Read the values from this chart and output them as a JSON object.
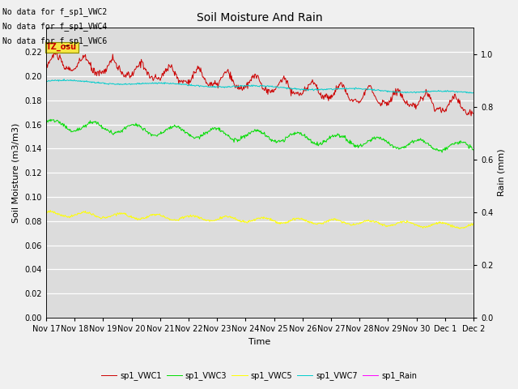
{
  "title": "Soil Moisture And Rain",
  "xlabel": "Time",
  "ylabel_left": "Soil Moisture (m3/m3)",
  "ylabel_right": "Rain (mm)",
  "ylim_left": [
    0.0,
    0.24
  ],
  "ylim_right": [
    0.0,
    1.1
  ],
  "fig_bg_color": "#f0f0f0",
  "plot_bg_color": "#dcdcdc",
  "no_data_text": [
    "No data for f_sp1_VWC2",
    "No data for f_sp1_VWC4",
    "No data for f_sp1_VWC6"
  ],
  "tz_label": "TZ_osu",
  "legend_entries": [
    "sp1_VWC1",
    "sp1_VWC3",
    "sp1_VWC5",
    "sp1_VWC7",
    "sp1_Rain"
  ],
  "vwc1_color": "#cc0000",
  "vwc3_color": "#00dd00",
  "vwc5_color": "#ffff00",
  "vwc7_color": "#00cccc",
  "rain_color": "#ff00ff",
  "x_tick_labels": [
    "Nov 17",
    "Nov 18",
    "Nov 19",
    "Nov 20",
    "Nov 21",
    "Nov 22",
    "Nov 23",
    "Nov 24",
    "Nov 25",
    "Nov 26",
    "Nov 27",
    "Nov 28",
    "Nov 29",
    "Nov 30",
    "Dec 1",
    "Dec 2"
  ],
  "yticks_left": [
    0.0,
    0.02,
    0.04,
    0.06,
    0.08,
    0.1,
    0.12,
    0.14,
    0.16,
    0.18,
    0.2,
    0.22
  ],
  "yticks_right": [
    0.0,
    0.2,
    0.4,
    0.6,
    0.8,
    1.0
  ],
  "n_days": 15,
  "n_pts_per_day": 48
}
